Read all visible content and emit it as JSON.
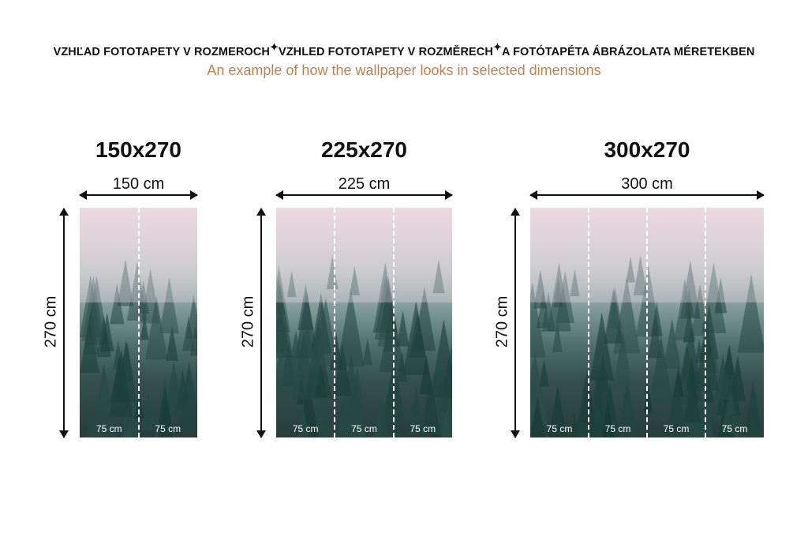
{
  "header": {
    "parts": [
      "VZHĽAD FOTOTAPETY V ROZMEROCH",
      "VZHLED FOTOTAPETY V ROZMĚRECH",
      "A FOTÓTAPÉTA ÁBRÁZOLATA MÉRETEKBEN"
    ],
    "separator_icon": "sparkle-icon",
    "subtitle": "An example of how the wallpaper looks in selected dimensions"
  },
  "colors": {
    "subtitle": "#c0814f",
    "fog_top": "#ead9e0",
    "forest_bottom": "#263d3b"
  },
  "panels": [
    {
      "title": "150x270",
      "width_label": "150 cm",
      "height_label": "270 cm",
      "strips": [
        "75 cm",
        "75 cm"
      ]
    },
    {
      "title": "225x270",
      "width_label": "225 cm",
      "height_label": "270 cm",
      "strips": [
        "75 cm",
        "75 cm",
        "75 cm"
      ]
    },
    {
      "title": "300x270",
      "width_label": "300 cm",
      "height_label": "270 cm",
      "strips": [
        "75 cm",
        "75 cm",
        "75 cm",
        "75 cm"
      ]
    }
  ]
}
